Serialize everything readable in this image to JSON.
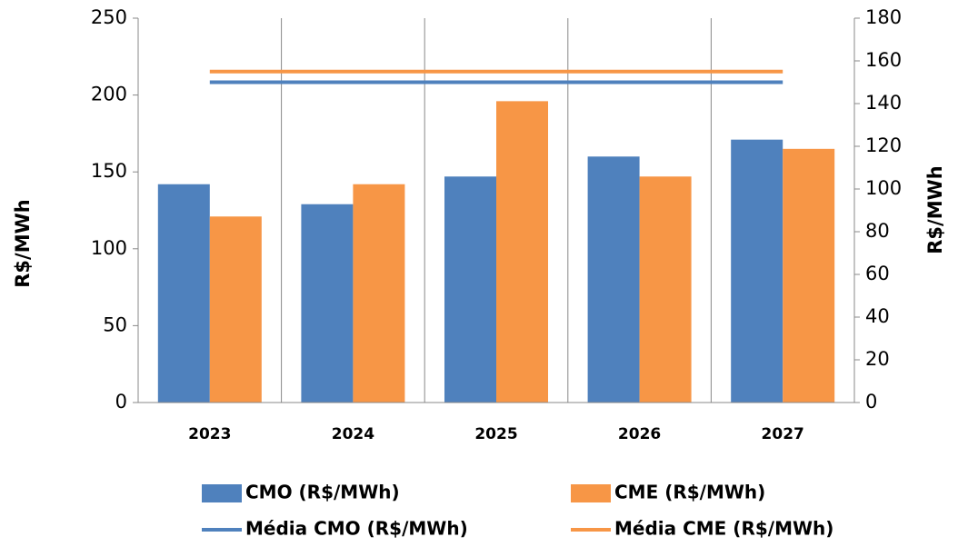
{
  "chart_data": {
    "type": "bar",
    "categories": [
      "2023",
      "2024",
      "2025",
      "2026",
      "2027"
    ],
    "series": [
      {
        "name": "CMO (R$/MWh)",
        "type": "bar",
        "color": "#4f81bd",
        "values": [
          142,
          129,
          147,
          160,
          171
        ]
      },
      {
        "name": "CME (R$/MWh)",
        "type": "bar",
        "color": "#f79646",
        "values": [
          121,
          142,
          196,
          147,
          165
        ]
      },
      {
        "name": "Média CMO (R$/MWh)",
        "type": "line",
        "axis": "y2",
        "color": "#4f81bd",
        "values": [
          150,
          150,
          150,
          150,
          150
        ]
      },
      {
        "name": "Média CME (R$/MWh)",
        "type": "line",
        "axis": "y2",
        "color": "#f79646",
        "values": [
          155,
          155,
          155,
          155,
          155
        ]
      }
    ],
    "ylabel": "R$/MWh",
    "y2label": "R$/MWh",
    "ylim": [
      0,
      250
    ],
    "yticks": [
      0,
      50,
      100,
      150,
      200,
      250
    ],
    "y2lim": [
      0,
      180
    ],
    "y2ticks": [
      0,
      20,
      40,
      60,
      80,
      100,
      120,
      140,
      160,
      180
    ],
    "grid": "vertical",
    "legend": "bottom"
  }
}
